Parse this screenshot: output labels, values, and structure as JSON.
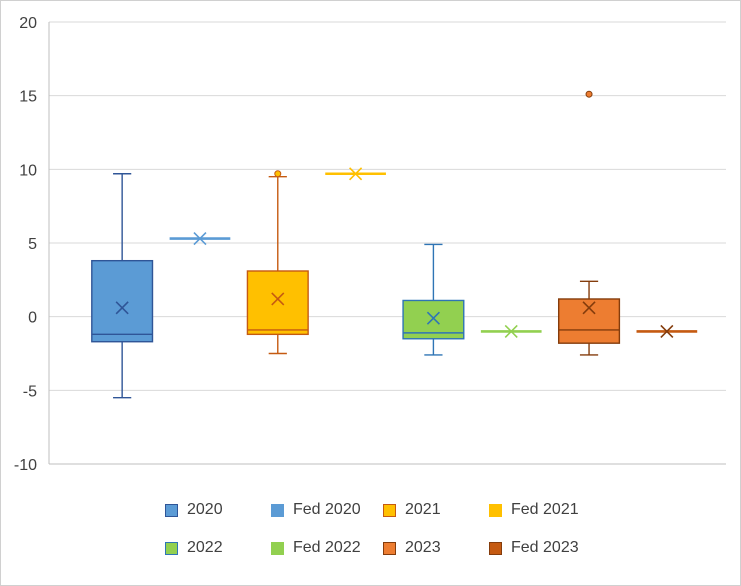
{
  "chart_data": {
    "type": "box",
    "title": "",
    "xlabel": "",
    "ylabel": "",
    "ylim": [
      -10,
      20
    ],
    "yticks": [
      "20",
      "15",
      "10",
      "5",
      "0",
      "-5",
      "-10"
    ],
    "ytick_values": [
      20,
      15,
      10,
      5,
      0,
      -5,
      -10
    ],
    "grid": true,
    "legend_position": "bottom",
    "series": [
      {
        "name": "2020",
        "color": "#5B9BD5",
        "edge": "#2F5597",
        "kind": "box",
        "min": -5.5,
        "q1": -1.7,
        "median": -1.2,
        "q3": 3.8,
        "max": 9.7,
        "mean": 0.6,
        "outliers": []
      },
      {
        "name": "Fed 2020",
        "color": "#5B9BD5",
        "edge": "#5B9BD5",
        "kind": "point",
        "min": 5.3,
        "q1": 5.3,
        "median": 5.3,
        "q3": 5.3,
        "max": 5.3,
        "mean": 5.3,
        "outliers": []
      },
      {
        "name": "2021",
        "color": "#FFC000",
        "edge": "#C55A11",
        "kind": "box",
        "min": -2.5,
        "q1": -1.2,
        "median": -0.9,
        "q3": 3.1,
        "max": 9.5,
        "mean": 1.2,
        "outliers": [
          9.7
        ]
      },
      {
        "name": "Fed 2021",
        "color": "#FFC000",
        "edge": "#FFC000",
        "kind": "point",
        "min": 9.7,
        "q1": 9.7,
        "median": 9.7,
        "q3": 9.7,
        "max": 9.7,
        "mean": 9.7,
        "outliers": []
      },
      {
        "name": "2022",
        "color": "#92D050",
        "edge": "#2F75B5",
        "kind": "box",
        "min": -2.6,
        "q1": -1.5,
        "median": -1.1,
        "q3": 1.1,
        "max": 4.9,
        "mean": -0.1,
        "outliers": []
      },
      {
        "name": "Fed 2022",
        "color": "#92D050",
        "edge": "#92D050",
        "kind": "point",
        "min": -1.0,
        "q1": -1.0,
        "median": -1.0,
        "q3": -1.0,
        "max": -1.0,
        "mean": -1.0,
        "outliers": []
      },
      {
        "name": "2023",
        "color": "#ED7D31",
        "edge": "#843C0C",
        "kind": "box",
        "min": -2.6,
        "q1": -1.8,
        "median": -0.9,
        "q3": 1.2,
        "max": 2.4,
        "mean": 0.6,
        "outliers": [
          15.1
        ]
      },
      {
        "name": "Fed 2023",
        "color": "#C55A11",
        "edge": "#843C0C",
        "kind": "point",
        "min": -1.0,
        "q1": -1.0,
        "median": -1.0,
        "q3": -1.0,
        "max": -1.0,
        "mean": -1.0,
        "outliers": []
      }
    ]
  },
  "colors": {
    "grid": "#d9d9d9",
    "axis": "#bfbfbf",
    "text": "#404040"
  }
}
